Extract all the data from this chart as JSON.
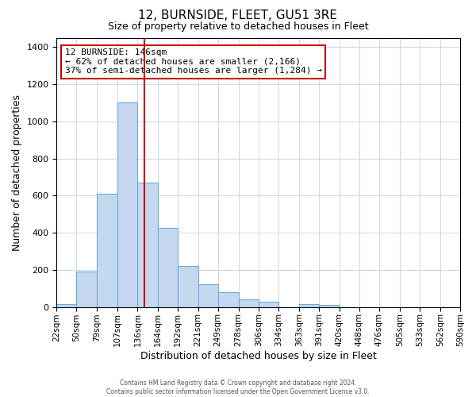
{
  "title": "12, BURNSIDE, FLEET, GU51 3RE",
  "subtitle": "Size of property relative to detached houses in Fleet",
  "xlabel": "Distribution of detached houses by size in Fleet",
  "ylabel": "Number of detached properties",
  "bin_labels": [
    "22sqm",
    "50sqm",
    "79sqm",
    "107sqm",
    "136sqm",
    "164sqm",
    "192sqm",
    "221sqm",
    "249sqm",
    "278sqm",
    "306sqm",
    "334sqm",
    "363sqm",
    "391sqm",
    "420sqm",
    "448sqm",
    "476sqm",
    "505sqm",
    "533sqm",
    "562sqm",
    "590sqm"
  ],
  "bin_edges": [
    22,
    50,
    79,
    107,
    136,
    164,
    192,
    221,
    249,
    278,
    306,
    334,
    363,
    391,
    420,
    448,
    476,
    505,
    533,
    562,
    590
  ],
  "bar_heights": [
    15,
    193,
    610,
    1103,
    670,
    425,
    222,
    122,
    78,
    40,
    30,
    0,
    15,
    10,
    0,
    0,
    0,
    0,
    0,
    0
  ],
  "bar_color": "#c5d8f0",
  "bar_edge_color": "#6aaed6",
  "vline_x": 146,
  "vline_color": "#cc0000",
  "ylim": [
    0,
    1450
  ],
  "yticks": [
    0,
    200,
    400,
    600,
    800,
    1000,
    1200,
    1400
  ],
  "annotation_title": "12 BURNSIDE: 146sqm",
  "annotation_line1": "← 62% of detached houses are smaller (2,166)",
  "annotation_line2": "37% of semi-detached houses are larger (1,284) →",
  "annotation_box_color": "#ffffff",
  "annotation_box_edge": "#cc0000",
  "footer_line1": "Contains HM Land Registry data © Crown copyright and database right 2024.",
  "footer_line2": "Contains public sector information licensed under the Open Government Licence v3.0.",
  "background_color": "#ffffff",
  "grid_color": "#c8d8e8"
}
